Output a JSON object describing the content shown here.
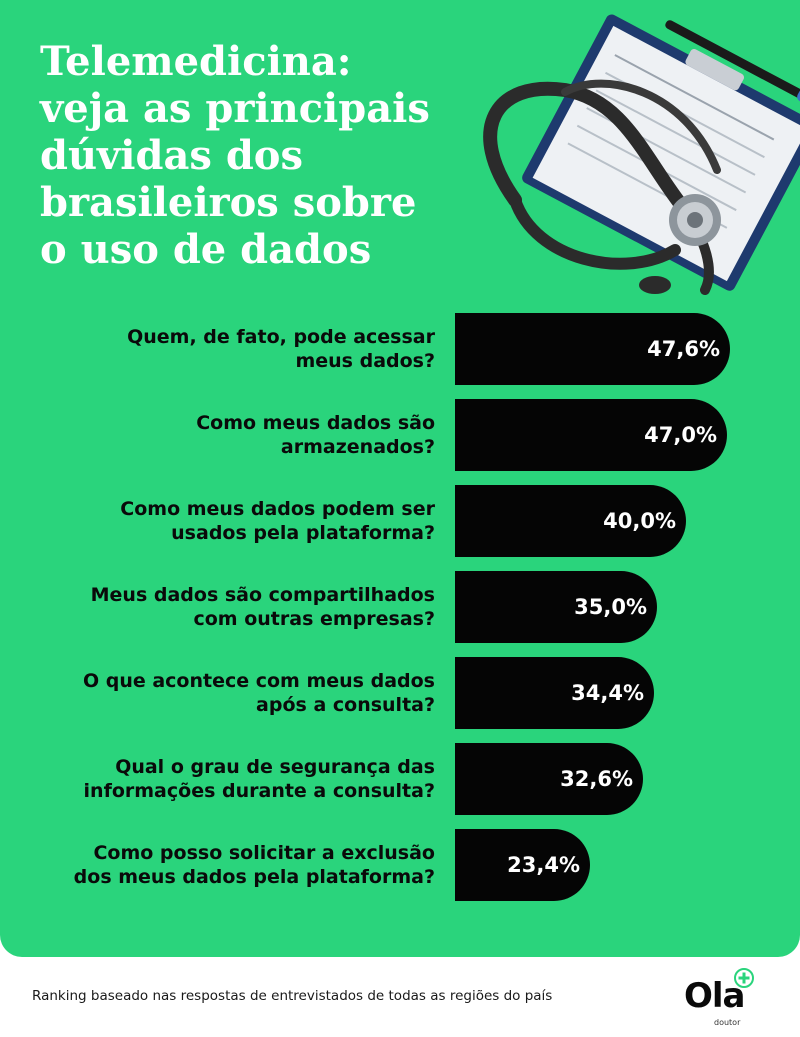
{
  "page": {
    "title": "Telemedicina:\nveja as principais\ndúvidas dos\nbrasileiros sobre\no uso de dados",
    "footer_note": "Ranking baseado nas respostas de entrevistados de todas as regiões do país",
    "logo_main": "Ola",
    "logo_sub": "doutor",
    "illustration_icon": "stethoscope-clipboard-icon",
    "colors": {
      "background": "#2ad47c",
      "bar": "#050505",
      "bar_text": "#ffffff",
      "question_text": "#0a0a0a"
    }
  },
  "chart_data": {
    "type": "bar",
    "orientation": "horizontal",
    "title": "Telemedicina: veja as principais dúvidas dos brasileiros sobre o uso de dados",
    "categories": [
      "Quem, de fato, pode acessar\nmeus dados?",
      "Como meus dados são\narmazenados?",
      "Como meus dados podem ser\nusados pela plataforma?",
      "Meus dados são compartilhados\ncom outras empresas?",
      "O que acontece com meus dados\napós a consulta?",
      "Qual o grau de segurança das\ninformações durante a consulta?",
      "Como posso solicitar a exclusão\ndos meus dados pela plataforma?"
    ],
    "values": [
      47.6,
      47.0,
      40.0,
      35.0,
      34.4,
      32.6,
      23.4
    ],
    "value_labels": [
      "47,6%",
      "47,0%",
      "40,0%",
      "35,0%",
      "34,4%",
      "32,6%",
      "23,4%"
    ],
    "unit": "%",
    "grid": false,
    "legend": "none"
  }
}
